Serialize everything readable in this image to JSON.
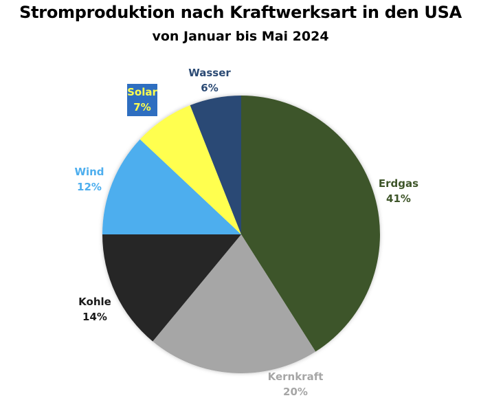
{
  "chart_data": {
    "type": "pie",
    "title": "Stromproduktion nach Kraftwerksart in den USA",
    "subtitle": "von Januar bis Mai 2024",
    "start_angle": "12 o'clock",
    "direction": "clockwise",
    "legend": "none (data labels outside slices)",
    "slices": [
      {
        "label": "Erdgas",
        "value": 41,
        "value_label": "41%",
        "color": "#3E5529",
        "label_color": "#3E5529"
      },
      {
        "label": "Kernkraft",
        "value": 20,
        "value_label": "20%",
        "color": "#A6A6A6",
        "label_color": "#A6A6A6"
      },
      {
        "label": "Kohle",
        "value": 14,
        "value_label": "14%",
        "color": "#262626",
        "label_color": "#1A1A1A"
      },
      {
        "label": "Wind",
        "value": 12,
        "value_label": "12%",
        "color": "#4DAEEE",
        "label_color": "#4DAEEE"
      },
      {
        "label": "Solar",
        "value": 7,
        "value_label": "7%",
        "color": "#FFFF4F",
        "label_color": "#FFFF4F",
        "label_background": "#2E6EC0"
      },
      {
        "label": "Wasser",
        "value": 6,
        "value_label": "6%",
        "color": "#2B4A74",
        "label_color": "#2B4A74"
      }
    ]
  }
}
